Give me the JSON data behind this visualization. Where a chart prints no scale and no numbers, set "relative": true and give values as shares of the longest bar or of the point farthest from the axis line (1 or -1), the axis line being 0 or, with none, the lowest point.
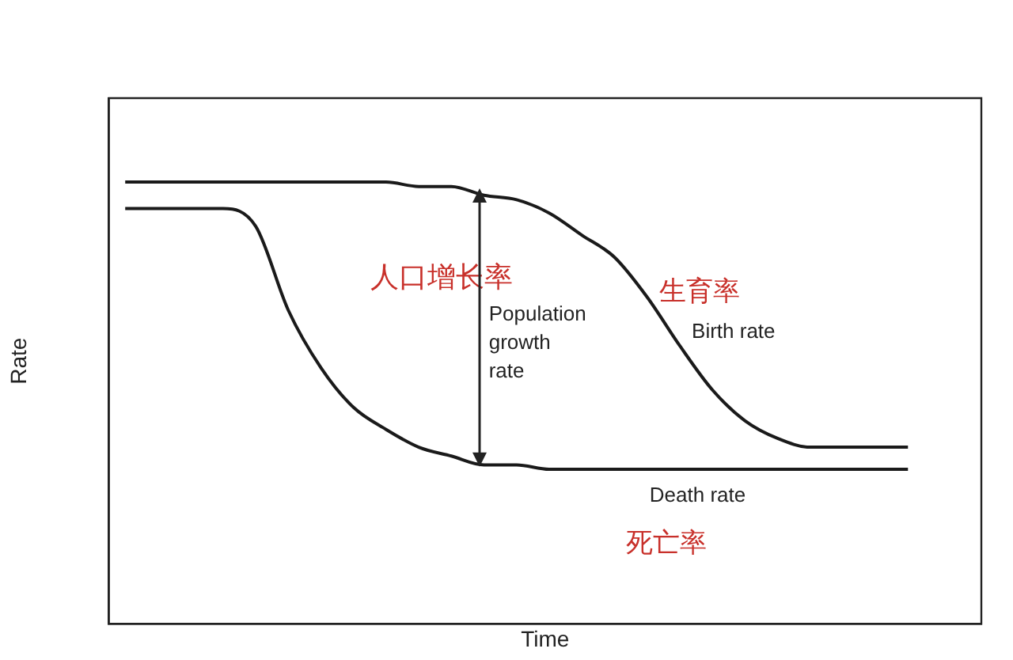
{
  "chart_data": {
    "type": "line",
    "relative": true,
    "xlabel": "Time",
    "ylabel": "Rate",
    "legend": false,
    "grid": false,
    "marker": "none",
    "line_style": "solid",
    "categories": [
      null,
      null,
      null,
      null,
      null,
      null,
      null,
      null,
      null,
      null,
      null,
      null,
      null,
      null,
      null,
      null,
      null,
      null,
      null,
      null,
      null,
      null,
      null,
      null,
      null
    ],
    "series": [
      {
        "name": "Birth rate",
        "color": "#1a1a1a",
        "values": [
          1,
          1,
          1,
          1,
          1,
          1,
          1,
          1,
          1,
          0.99,
          0.99,
          0.97,
          0.96,
          0.93,
          0.88,
          0.83,
          0.74,
          0.63,
          0.53,
          0.46,
          0.42,
          0.4,
          0.4,
          0.4,
          0.4
        ]
      },
      {
        "name": "Death rate",
        "color": "#1a1a1a",
        "values": [
          0.94,
          0.94,
          0.94,
          0.94,
          0.9,
          0.71,
          0.58,
          0.49,
          0.44,
          0.4,
          0.38,
          0.36,
          0.36,
          0.35,
          0.35,
          0.35,
          0.35,
          0.35,
          0.35,
          0.35,
          0.35,
          0.35,
          0.35,
          0.35,
          0.35
        ]
      }
    ],
    "annotations": [
      "人口增长率",
      "Population growth rate",
      "生育率",
      "死亡率"
    ]
  }
}
